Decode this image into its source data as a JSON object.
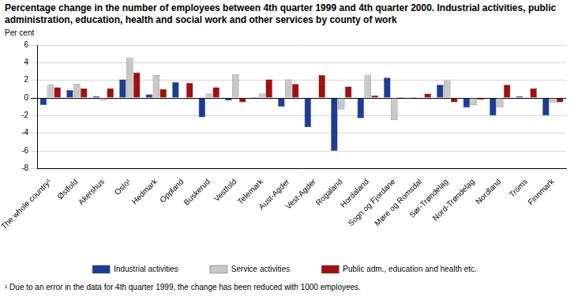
{
  "chart_data": {
    "type": "bar",
    "title": "Percentage change in the number of employees between 4th quarter 1999 and 4th quarter 2000. Industrial activities, public administration, education, health and social work and other services by county of work",
    "y_label": "Per cent",
    "footnote": "¹ Due to an error in the data for 4th quarter 1999, the change  has been reduced with 1000 employees.",
    "categories": [
      "The whole country¹",
      "Østfold",
      "Akershus",
      "Oslo¹",
      "Hedmark",
      "Oppland",
      "Buskerud",
      "Vestfold",
      "Telemark",
      "Aust-Agder",
      "Vest-Agder",
      "Rogaland",
      "Hordaland",
      "Sogn og Fjordane",
      "Møre og Romsdal",
      "Sør-Trøndelag",
      "Nord-Trøndelag",
      "Nordland",
      "Troms",
      "Finnmark"
    ],
    "series": [
      {
        "name": "Industrial activities",
        "color": "#1c3c96",
        "values": [
          -0.8,
          0.9,
          0.2,
          2.1,
          0.4,
          1.8,
          -2.2,
          -0.3,
          0.1,
          -1.0,
          -3.3,
          -6.0,
          -2.3,
          2.3,
          0.1,
          1.5,
          -1.1,
          -2.0,
          0.2,
          -2.0
        ]
      },
      {
        "name": "Service activities",
        "color": "#c8c8c8",
        "values": [
          1.5,
          1.6,
          -0.3,
          4.6,
          2.6,
          -0.2,
          0.5,
          2.7,
          0.5,
          2.1,
          0.0,
          -1.3,
          2.6,
          -2.5,
          0.0,
          2.0,
          -0.8,
          -1.1,
          0.0,
          -0.5
        ]
      },
      {
        "name": "Public adm., education and health etc.",
        "color": "#a0100f",
        "values": [
          1.2,
          1.1,
          1.1,
          2.9,
          1.0,
          1.7,
          1.2,
          -0.5,
          2.1,
          1.6,
          2.6,
          1.3,
          0.3,
          0.1,
          0.5,
          -0.5,
          -0.2,
          1.5,
          1.1,
          -0.5
        ]
      }
    ],
    "ylim": [
      -8,
      6
    ],
    "yticks": [
      -8,
      -6,
      -4,
      -2,
      0,
      2,
      4,
      6
    ],
    "grid": true,
    "legend": "bottom"
  }
}
